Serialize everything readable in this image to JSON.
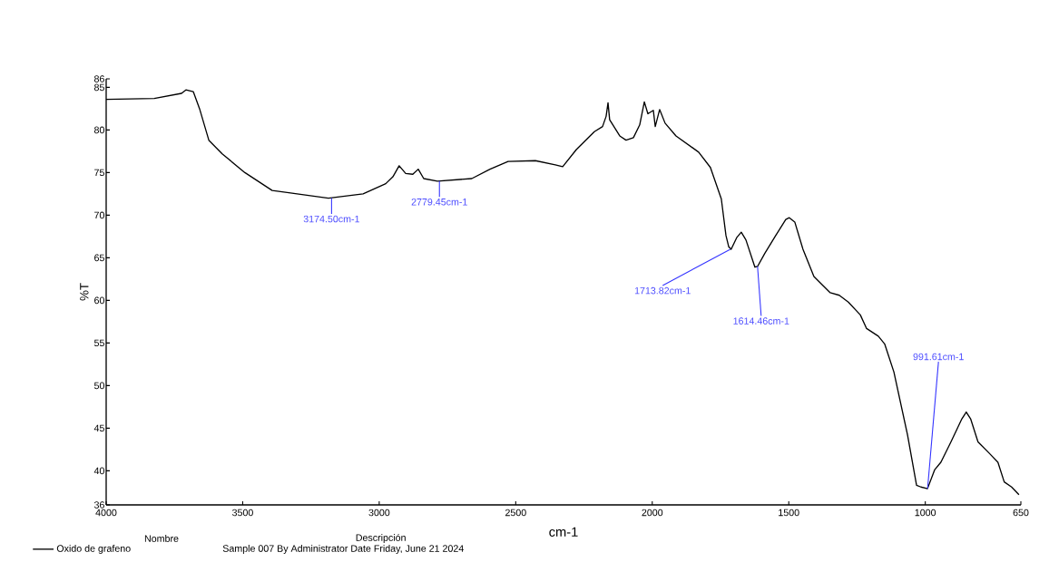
{
  "chart_data": {
    "type": "line",
    "xlabel": "cm-1",
    "ylabel": "%T",
    "x": [
      4000,
      3824,
      3724,
      3708,
      3681,
      3658,
      3624,
      3575,
      3492,
      3392,
      3325,
      3186,
      3059,
      2976,
      2950,
      2927,
      2903,
      2877,
      2857,
      2837,
      2787,
      2661,
      2594,
      2528,
      2428,
      2355,
      2328,
      2278,
      2212,
      2182,
      2169,
      2162,
      2156,
      2119,
      2096,
      2069,
      2046,
      2029,
      2016,
      1996,
      1989,
      1973,
      1953,
      1913,
      1830,
      1787,
      1747,
      1730,
      1720,
      1711,
      1690,
      1674,
      1657,
      1624,
      1614,
      1588,
      1548,
      1511,
      1498,
      1478,
      1448,
      1408,
      1348,
      1315,
      1282,
      1238,
      1215,
      1172,
      1149,
      1115,
      1065,
      1032,
      1016,
      992,
      966,
      943,
      906,
      866,
      850,
      834,
      807,
      767,
      734,
      711,
      684,
      657
    ],
    "series": [
      {
        "name": "Oxido de grafeno",
        "color": "#000000",
        "values": [
          83.6,
          83.7,
          84.3,
          84.7,
          84.5,
          82.5,
          78.8,
          77.2,
          75.0,
          72.9,
          72.6,
          72.0,
          72.5,
          73.7,
          74.5,
          75.8,
          74.9,
          74.8,
          75.4,
          74.3,
          74.0,
          74.3,
          75.4,
          76.3,
          76.4,
          75.9,
          75.7,
          77.7,
          79.8,
          80.4,
          81.6,
          83.2,
          81.2,
          79.3,
          78.8,
          79.1,
          80.6,
          83.3,
          81.9,
          82.3,
          80.4,
          82.4,
          80.8,
          79.3,
          77.4,
          75.6,
          71.9,
          67.6,
          66.3,
          66.0,
          67.4,
          68.0,
          67.1,
          63.9,
          64.0,
          65.5,
          67.6,
          69.5,
          69.7,
          69.2,
          66.0,
          62.8,
          60.9,
          60.6,
          59.8,
          58.3,
          56.7,
          55.8,
          54.9,
          51.6,
          44.2,
          38.3,
          38.1,
          37.9,
          40.1,
          41.0,
          43.4,
          46.1,
          46.9,
          46.1,
          43.4,
          42.1,
          41.0,
          38.7,
          38.1,
          37.2
        ]
      }
    ],
    "xlim": [
      4000,
      650
    ],
    "xticks": [
      4000,
      3500,
      3000,
      2500,
      2000,
      1500,
      1000,
      650
    ],
    "ylim": [
      36,
      86
    ],
    "yticks": [
      36,
      40,
      45,
      50,
      55,
      60,
      65,
      70,
      75,
      80,
      85,
      86
    ],
    "grid": false,
    "legend": "bottom left",
    "marker": "none",
    "line_style": "solid",
    "annotations": [
      {
        "text": "3174.50cm-1",
        "x": 3174.5,
        "y": 72.0
      },
      {
        "text": "2779.45cm-1",
        "x": 2779.45,
        "y": 74.0
      },
      {
        "text": "1713.82cm-1",
        "x": 1713.82,
        "y": 66.0
      },
      {
        "text": "1614.46cm-1",
        "x": 1614.46,
        "y": 64.0
      },
      {
        "text": "991.61cm-1",
        "x": 991.61,
        "y": 37.9
      },
      "Nombre",
      "Descripción",
      "Sample 007 By Administrator Date Friday, June 21 2024"
    ]
  }
}
